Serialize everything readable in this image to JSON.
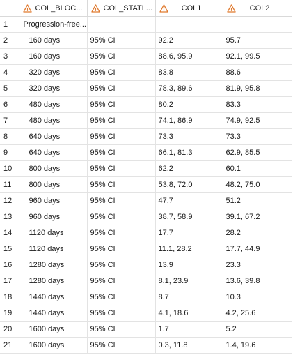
{
  "grid": {
    "columns": [
      {
        "label": "COL_BLOC...",
        "icon": "warning-triangle-icon",
        "align": "left"
      },
      {
        "label": "COL_STATL...",
        "icon": "warning-triangle-icon",
        "align": "left"
      },
      {
        "label": "COL1",
        "icon": "warning-triangle-icon",
        "align": "center"
      },
      {
        "label": "COL2",
        "icon": "warning-triangle-icon",
        "align": "center"
      }
    ],
    "rows": [
      {
        "n": "1",
        "block": "Progression-free...",
        "stat": "",
        "col1": "",
        "col2": ""
      },
      {
        "n": "2",
        "block": "160 days",
        "stat": "95% CI",
        "col1": "92.2",
        "col2": "95.7"
      },
      {
        "n": "3",
        "block": "160 days",
        "stat": "95% CI",
        "col1": "88.6, 95.9",
        "col2": "92.1, 99.5"
      },
      {
        "n": "4",
        "block": "320 days",
        "stat": "95% CI",
        "col1": "83.8",
        "col2": "88.6"
      },
      {
        "n": "5",
        "block": "320 days",
        "stat": "95% CI",
        "col1": "78.3, 89.6",
        "col2": "81.9, 95.8"
      },
      {
        "n": "6",
        "block": "480 days",
        "stat": "95% CI",
        "col1": "80.2",
        "col2": "83.3"
      },
      {
        "n": "7",
        "block": "480 days",
        "stat": "95% CI",
        "col1": "74.1, 86.9",
        "col2": "74.9, 92.5"
      },
      {
        "n": "8",
        "block": "640 days",
        "stat": "95% CI",
        "col1": "73.3",
        "col2": "73.3"
      },
      {
        "n": "9",
        "block": "640 days",
        "stat": "95% CI",
        "col1": "66.1, 81.3",
        "col2": "62.9, 85.5"
      },
      {
        "n": "10",
        "block": "800 days",
        "stat": "95% CI",
        "col1": "62.2",
        "col2": "60.1"
      },
      {
        "n": "11",
        "block": "800 days",
        "stat": "95% CI",
        "col1": "53.8, 72.0",
        "col2": "48.2, 75.0"
      },
      {
        "n": "12",
        "block": "960 days",
        "stat": "95% CI",
        "col1": "47.7",
        "col2": "51.2"
      },
      {
        "n": "13",
        "block": "960 days",
        "stat": "95% CI",
        "col1": "38.7, 58.9",
        "col2": "39.1, 67.2"
      },
      {
        "n": "14",
        "block": "1120 days",
        "stat": "95% CI",
        "col1": "17.7",
        "col2": "28.2"
      },
      {
        "n": "15",
        "block": "1120 days",
        "stat": "95% CI",
        "col1": "11.1, 28.2",
        "col2": "17.7, 44.9"
      },
      {
        "n": "16",
        "block": "1280 days",
        "stat": "95% CI",
        "col1": "13.9",
        "col2": "23.3"
      },
      {
        "n": "17",
        "block": "1280 days",
        "stat": "95% CI",
        "col1": "8.1, 23.9",
        "col2": "13.6, 39.8"
      },
      {
        "n": "18",
        "block": "1440 days",
        "stat": "95% CI",
        "col1": "8.7",
        "col2": "10.3"
      },
      {
        "n": "19",
        "block": "1440 days",
        "stat": "95% CI",
        "col1": "4.1, 18.6",
        "col2": "4.2, 25.6"
      },
      {
        "n": "20",
        "block": "1600 days",
        "stat": "95% CI",
        "col1": "1.7",
        "col2": "5.2"
      },
      {
        "n": "21",
        "block": "1600 days",
        "stat": "95% CI",
        "col1": "0.3, 11.8",
        "col2": "1.4, 19.6"
      }
    ]
  },
  "colors": {
    "icon_stroke": "#e07a2e",
    "grid_line": "#e3e3e3"
  }
}
